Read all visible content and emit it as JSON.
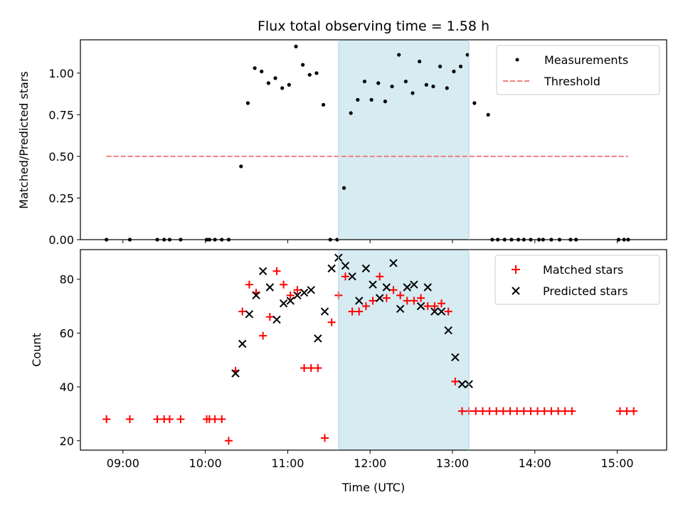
{
  "chart_data": [
    {
      "type": "scatter",
      "title": "Flux total observing time = 1.58 h",
      "xlabel": "",
      "ylabel": "Matched/Predicted stars",
      "xlim": [
        "08:29",
        "15:36"
      ],
      "ylim": [
        0.0,
        1.2
      ],
      "x_tick_labels": [],
      "y_tick_labels": [
        "0.00",
        "0.25",
        "0.50",
        "0.75",
        "1.00"
      ],
      "y_ticks": [
        0.0,
        0.25,
        0.5,
        0.75,
        1.0
      ],
      "highlight_span": [
        "11:37",
        "13:12"
      ],
      "highlight_color": "#add8e6",
      "legend_position": "upper right",
      "series": [
        {
          "name": "Measurements",
          "marker": "dot",
          "color": "#000000",
          "x": [
            "08:48",
            "09:05",
            "09:25",
            "09:30",
            "09:34",
            "09:42",
            "10:01",
            "10:03",
            "10:07",
            "10:12",
            "10:17",
            "10:26",
            "10:31",
            "10:36",
            "10:41",
            "10:46",
            "10:51",
            "10:56",
            "11:01",
            "11:06",
            "11:11",
            "11:16",
            "11:21",
            "11:26",
            "11:31",
            "11:36",
            "11:41",
            "11:46",
            "11:51",
            "11:56",
            "12:01",
            "12:06",
            "12:11",
            "12:16",
            "12:21",
            "12:26",
            "12:31",
            "12:36",
            "12:41",
            "12:46",
            "12:51",
            "12:56",
            "13:01",
            "13:06",
            "13:11",
            "13:16",
            "13:26",
            "13:29",
            "13:33",
            "13:38",
            "13:43",
            "13:48",
            "13:52",
            "13:57",
            "14:03",
            "14:06",
            "14:12",
            "14:18",
            "14:26",
            "14:30",
            "15:01",
            "15:05",
            "15:08"
          ],
          "y": [
            0.0,
            0.0,
            0.0,
            0.0,
            0.0,
            0.0,
            0.0,
            0.0,
            0.0,
            0.0,
            0.0,
            0.44,
            0.82,
            1.03,
            1.01,
            0.94,
            0.97,
            0.91,
            0.93,
            1.16,
            1.05,
            0.99,
            1.0,
            0.81,
            0.0,
            0.0,
            0.31,
            0.76,
            0.84,
            0.95,
            0.84,
            0.94,
            0.83,
            0.92,
            1.11,
            0.95,
            0.88,
            1.07,
            0.93,
            0.92,
            1.04,
            0.91,
            1.01,
            1.04,
            1.11,
            0.82,
            0.75,
            0.0,
            0.0,
            0.0,
            0.0,
            0.0,
            0.0,
            0.0,
            0.0,
            0.0,
            0.0,
            0.0,
            0.0,
            0.0,
            0.0,
            0.0,
            0.0
          ]
        },
        {
          "name": "Threshold",
          "type": "line",
          "style": "dashed",
          "color": "#f08080",
          "x": [
            "08:48",
            "15:08"
          ],
          "y": [
            0.5,
            0.5
          ]
        }
      ]
    },
    {
      "type": "scatter",
      "title": "",
      "xlabel": "Time (UTC)",
      "ylabel": "Count",
      "xlim": [
        "08:29",
        "15:36"
      ],
      "ylim": [
        16.5,
        91
      ],
      "x_tick_labels": [
        "09:00",
        "10:00",
        "11:00",
        "12:00",
        "13:00",
        "14:00",
        "15:00"
      ],
      "x_ticks": [
        "09:00",
        "10:00",
        "11:00",
        "12:00",
        "13:00",
        "14:00",
        "15:00"
      ],
      "y_tick_labels": [
        "20",
        "40",
        "60",
        "80"
      ],
      "y_ticks": [
        20,
        40,
        60,
        80
      ],
      "highlight_span": [
        "11:37",
        "13:12"
      ],
      "highlight_color": "#add8e6",
      "legend_position": "upper right",
      "series": [
        {
          "name": "Matched stars",
          "marker": "plus",
          "color": "#ff0000",
          "x": [
            "08:48",
            "09:05",
            "09:25",
            "09:30",
            "09:34",
            "09:42",
            "10:01",
            "10:03",
            "10:07",
            "10:12",
            "10:17",
            "10:22",
            "10:27",
            "10:32",
            "10:37",
            "10:42",
            "10:47",
            "10:52",
            "10:57",
            "11:02",
            "11:07",
            "11:12",
            "11:17",
            "11:22",
            "11:27",
            "11:32",
            "11:37",
            "11:42",
            "11:47",
            "11:52",
            "11:57",
            "12:02",
            "12:07",
            "12:12",
            "12:17",
            "12:22",
            "12:27",
            "12:32",
            "12:37",
            "12:42",
            "12:47",
            "12:52",
            "12:57",
            "13:02",
            "13:07",
            "13:12",
            "13:17",
            "13:22",
            "13:27",
            "13:32",
            "13:37",
            "13:42",
            "13:47",
            "13:52",
            "13:57",
            "14:02",
            "14:07",
            "14:12",
            "14:17",
            "14:22",
            "14:27",
            "15:02",
            "15:07",
            "15:12"
          ],
          "y": [
            28,
            28,
            28,
            28,
            28,
            28,
            28,
            28,
            28,
            28,
            20,
            46,
            68,
            78,
            75,
            59,
            66,
            83,
            78,
            74,
            76,
            47,
            47,
            47,
            21,
            64,
            74,
            81,
            68,
            68,
            70,
            72,
            81,
            73,
            76,
            74,
            72,
            72,
            73,
            70,
            70,
            71,
            68,
            42,
            31,
            31,
            31,
            31,
            31,
            31,
            31,
            31,
            31,
            31,
            31,
            31,
            31,
            31,
            31,
            31,
            31,
            31,
            31,
            31
          ]
        },
        {
          "name": "Predicted stars",
          "marker": "x",
          "color": "#000000",
          "x": [
            "10:22",
            "10:27",
            "10:32",
            "10:37",
            "10:42",
            "10:47",
            "10:52",
            "10:57",
            "11:02",
            "11:07",
            "11:12",
            "11:17",
            "11:22",
            "11:27",
            "11:32",
            "11:37",
            "11:42",
            "11:47",
            "11:52",
            "11:57",
            "12:02",
            "12:07",
            "12:12",
            "12:17",
            "12:22",
            "12:27",
            "12:32",
            "12:37",
            "12:42",
            "12:47",
            "12:52",
            "12:57",
            "13:02",
            "13:07",
            "13:12"
          ],
          "y": [
            45,
            56,
            67,
            74,
            83,
            77,
            65,
            71,
            72,
            74,
            75,
            76,
            58,
            68,
            84,
            88,
            85,
            81,
            72,
            84,
            78,
            73,
            77,
            86,
            69,
            77,
            78,
            70,
            77,
            68,
            68,
            61,
            51,
            41,
            41
          ]
        }
      ]
    }
  ]
}
